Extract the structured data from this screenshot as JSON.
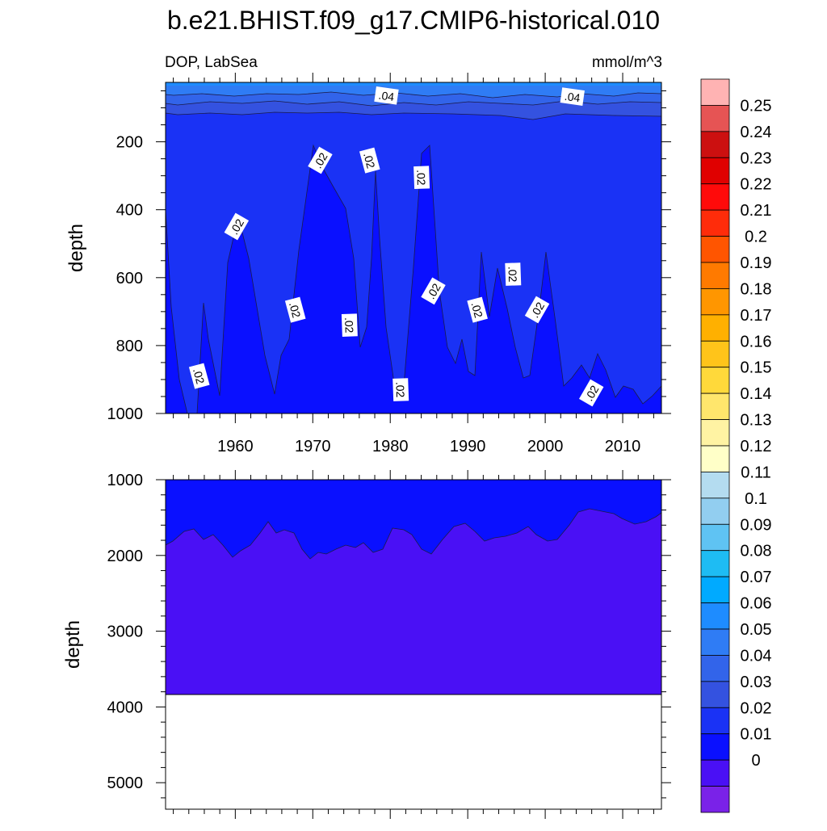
{
  "chart_data": {
    "type": "heatmap",
    "title": "b.e21.BHIST.f09_g17.CMIP6-historical.010",
    "subtitle_left": "DOP, LabSea",
    "subtitle_right": "mmol/m^3",
    "colorbar_labels": [
      "0.25",
      "0.24",
      "0.23",
      "0.22",
      "0.21",
      "0.2",
      "0.19",
      "0.18",
      "0.17",
      "0.16",
      "0.15",
      "0.14",
      "0.13",
      "0.12",
      "0.11",
      "0.1",
      "0.09",
      "0.08",
      "0.07",
      "0.06",
      "0.05",
      "0.04",
      "0.03",
      "0.02",
      "0.01",
      "0"
    ],
    "colorbar_colors": [
      "#ffb3b3",
      "#e65454",
      "#cc1010",
      "#e00000",
      "#ff0a0a",
      "#ff2c0a",
      "#ff5500",
      "#ff7a00",
      "#ff9600",
      "#ffb000",
      "#ffc41a",
      "#ffd93a",
      "#ffe66c",
      "#fff3a3",
      "#ffffc8",
      "#b4dcf0",
      "#92cef0",
      "#5fc3f3",
      "#1ebcf3",
      "#00aaff",
      "#1e8cff",
      "#2f7cf5",
      "#3264ea",
      "#3452e0",
      "#1a32f5",
      "#0a10ff",
      "#4a10f5",
      "#7a22e8"
    ],
    "panels": [
      {
        "ylabel": "depth",
        "ylim": [
          1000,
          25
        ],
        "yticks": [
          "200",
          "400",
          "600",
          "800",
          "1000"
        ],
        "xticks": [
          "1960",
          "1970",
          "1980",
          "1990",
          "2000",
          "2010"
        ],
        "xlim": [
          1951,
          2015
        ],
        "contour_labels": [
          {
            "text": ".04",
            "year": 1979.5,
            "depth": 65
          },
          {
            "text": ".04",
            "year": 2003.5,
            "depth": 68
          },
          {
            "text": ".02",
            "year": 1971.0,
            "depth": 255
          },
          {
            "text": ".02",
            "year": 1977.3,
            "depth": 255
          },
          {
            "text": ".02",
            "year": 1984.0,
            "depth": 305
          },
          {
            "text": ".02",
            "year": 1960.2,
            "depth": 450
          },
          {
            "text": ".02",
            "year": 1967.7,
            "depth": 695
          },
          {
            "text": ".02",
            "year": 1974.7,
            "depth": 740
          },
          {
            "text": ".02",
            "year": 1985.6,
            "depth": 640
          },
          {
            "text": ".02",
            "year": 1991.2,
            "depth": 695
          },
          {
            "text": ".02",
            "year": 1995.8,
            "depth": 590
          },
          {
            "text": ".02",
            "year": 1999.0,
            "depth": 695
          },
          {
            "text": ".02",
            "year": 1955.3,
            "depth": 890
          },
          {
            "text": ".02",
            "year": 1981.3,
            "depth": 930
          },
          {
            "text": ".02",
            "year": 2006.0,
            "depth": 940
          }
        ]
      },
      {
        "ylabel": "depth",
        "ylim": [
          5350,
          1000
        ],
        "yticks": [
          "1000",
          "2000",
          "3000",
          "4000",
          "5000"
        ],
        "xlim": [
          1951,
          2015
        ],
        "bottom_depth": 3860
      }
    ]
  }
}
